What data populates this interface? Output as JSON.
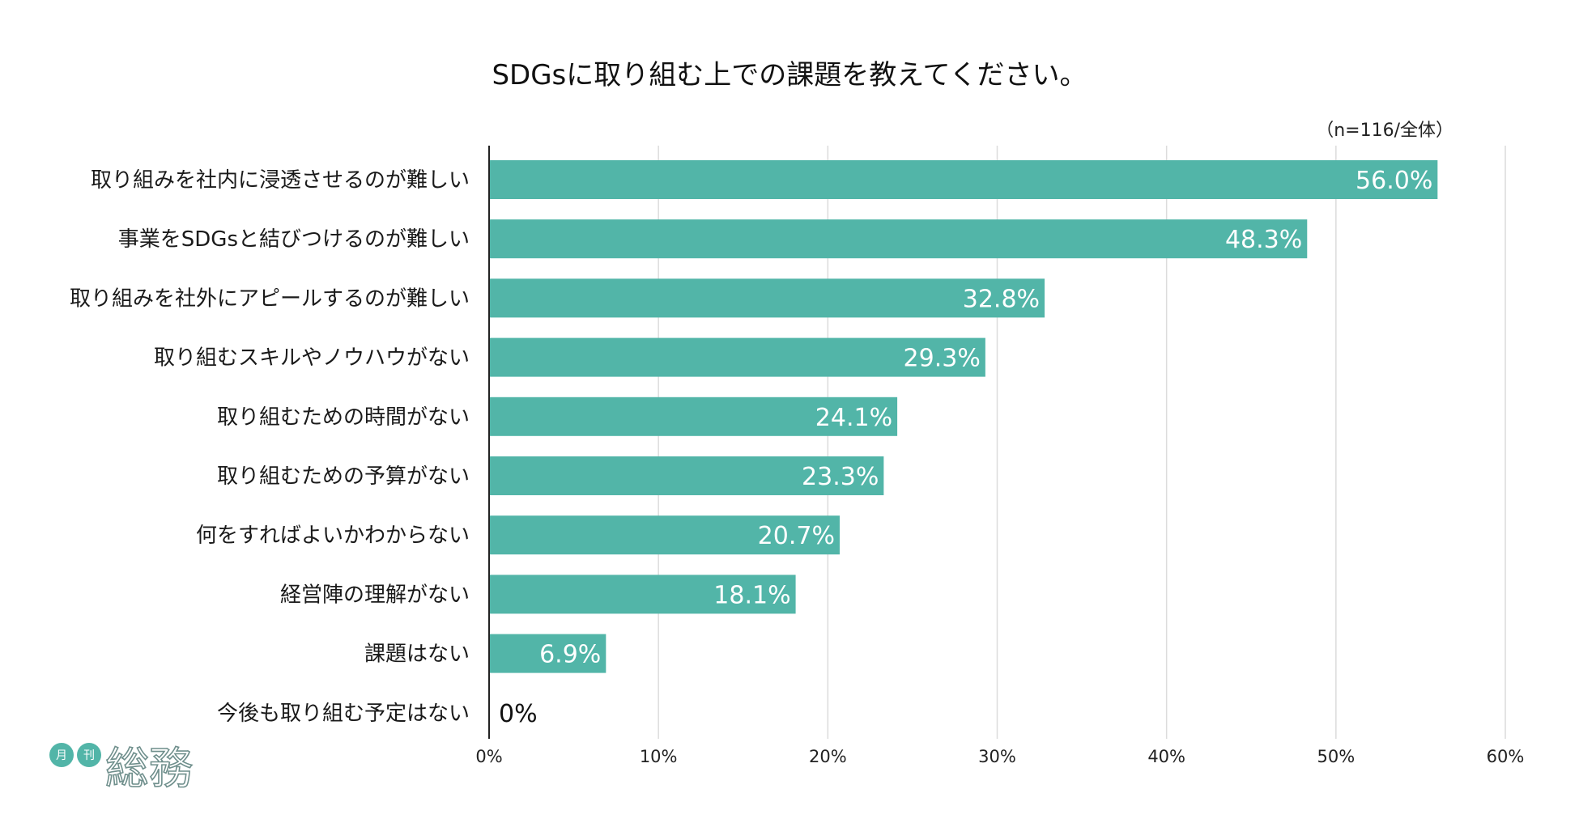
{
  "chart_data": {
    "type": "bar",
    "orientation": "horizontal",
    "title": "SDGsに取り組む上での課題を教えてください。",
    "note": "（n=116/全体）",
    "categories": [
      "取り組みを社内に浸透させるのが難しい",
      "事業をSDGsと結びつけるのが難しい",
      "取り組みを社外にアピールするのが難しい",
      "取り組むスキルやノウハウがない",
      "取り組むための時間がない",
      "取り組むための予算がない",
      "何をすればよいかわからない",
      "経営陣の理解がない",
      "課題はない",
      "今後も取り組む予定はない"
    ],
    "values": [
      56.0,
      48.3,
      32.8,
      29.3,
      24.1,
      23.3,
      20.7,
      18.1,
      6.9,
      0
    ],
    "value_labels": [
      "56.0%",
      "48.3%",
      "32.8%",
      "29.3%",
      "24.1%",
      "23.3%",
      "20.7%",
      "18.1%",
      "6.9%",
      "0%"
    ],
    "xlim": [
      0,
      60
    ],
    "x_ticks": [
      0,
      10,
      20,
      30,
      40,
      50,
      60
    ],
    "x_tick_labels": [
      "0%",
      "10%",
      "20%",
      "30%",
      "40%",
      "50%",
      "60%"
    ],
    "grid": true,
    "bar_color": "#52b5a8"
  },
  "logo": {
    "small_1": "月",
    "small_2": "刊",
    "main": "総務",
    "color": "#52b5a8"
  }
}
